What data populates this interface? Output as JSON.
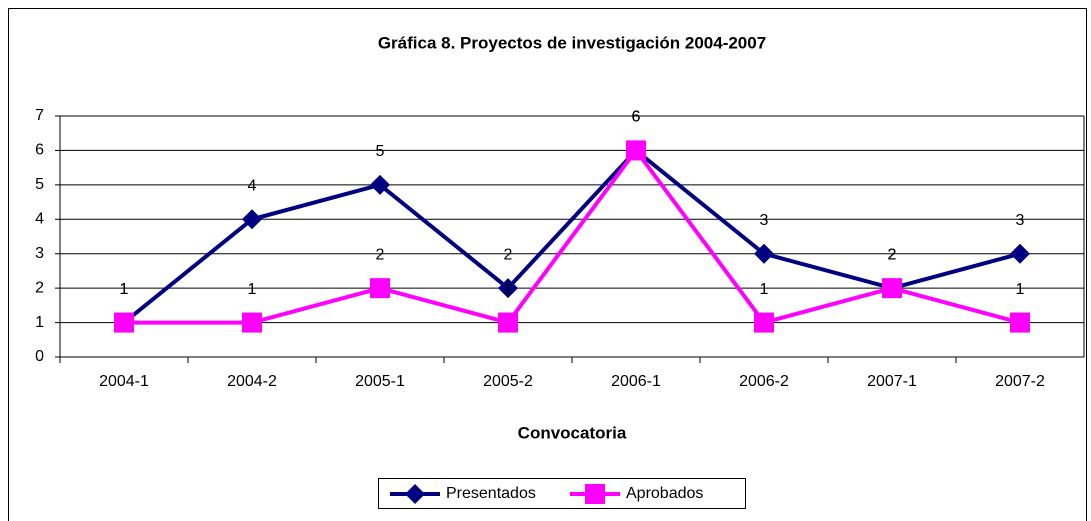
{
  "chart_data": {
    "type": "line",
    "title": "Gráfica 8. Proyectos de investigación 2004-2007",
    "x_label": "Convocatoria",
    "categories": [
      "2004-1",
      "2004-2",
      "2005-1",
      "2005-2",
      "2006-1",
      "2006-2",
      "2007-1",
      "2007-2"
    ],
    "series": [
      {
        "name": "Presentados",
        "color": "#000080",
        "marker": "diamond",
        "values": [
          1,
          4,
          5,
          2,
          6,
          3,
          2,
          3
        ]
      },
      {
        "name": "Aprobados",
        "color": "#ff00ff",
        "marker": "square",
        "values": [
          1,
          1,
          2,
          1,
          6,
          1,
          2,
          1
        ]
      }
    ],
    "ylim": [
      0,
      7
    ],
    "yticks": [
      0,
      1,
      2,
      3,
      4,
      5,
      6,
      7
    ],
    "grid": true,
    "legend": "bottom"
  }
}
